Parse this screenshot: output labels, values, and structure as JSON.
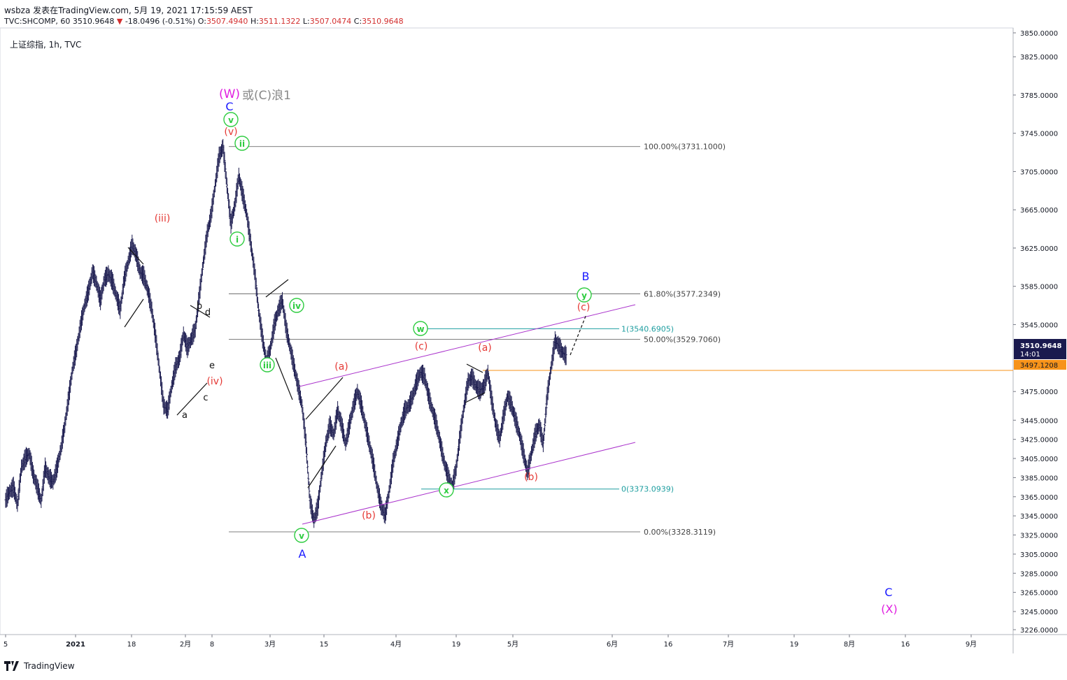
{
  "header": {
    "line1": "wsbza 发表在TradingView.com, 5月 19, 2021 17:15:59 AEST",
    "ticker": "TVC:SHCOMP, 60",
    "last": "3510.9648",
    "change": "-18.0496 (-0.51%)",
    "o_label": "O:",
    "o": "3507.4940",
    "h_label": "H:",
    "h": "3511.1322",
    "l_label": "L:",
    "l": "3507.0474",
    "c_label": "C:",
    "c": "3510.9648"
  },
  "symbol_label": "上证综指, 1h, TVC",
  "footer": {
    "brand": "TradingView"
  },
  "colors": {
    "candle": "#1a1a4e",
    "accent_red": "#e53935",
    "green": "#2ecc40",
    "blue": "#1a1aff",
    "magenta": "#e020e0",
    "channel": "#aa33cc",
    "fib_line": "#555555",
    "teal": "#1e9ea0",
    "orange": "#f7931a",
    "price_tag_bg": "#1a1a4e"
  },
  "chart_data": {
    "type": "line",
    "title": "",
    "ylim": [
      3226,
      3860
    ],
    "y_ticks": [
      "3850.0000",
      "3825.0000",
      "3785.0000",
      "3745.0000",
      "3705.0000",
      "3665.0000",
      "3625.0000",
      "3585.0000",
      "3545.0000",
      "3475.0000",
      "3445.0000",
      "3425.0000",
      "3405.0000",
      "3385.0000",
      "3365.0000",
      "3345.0000",
      "3325.0000",
      "3305.0000",
      "3285.0000",
      "3265.0000",
      "3245.0000",
      "3226.0000"
    ],
    "x_ticks": [
      "5",
      "2021",
      "18",
      "2月",
      "8",
      "3月",
      "15",
      "4月",
      "19",
      "5月",
      "6月",
      "16",
      "7月",
      "19",
      "8月",
      "16",
      "9月"
    ],
    "series": [
      {
        "name": "",
        "points": [
          [
            0,
            3361
          ],
          [
            1,
            3370
          ],
          [
            2,
            3375
          ],
          [
            3,
            3356
          ],
          [
            4,
            3395
          ],
          [
            5,
            3405
          ],
          [
            6,
            3410
          ],
          [
            7,
            3388
          ],
          [
            8,
            3375
          ],
          [
            9,
            3360
          ],
          [
            10,
            3395
          ],
          [
            11,
            3385
          ],
          [
            12,
            3380
          ],
          [
            13,
            3395
          ],
          [
            14,
            3415
          ],
          [
            15,
            3440
          ],
          [
            16,
            3470
          ],
          [
            17,
            3500
          ],
          [
            18,
            3520
          ],
          [
            19,
            3545
          ],
          [
            20,
            3565
          ],
          [
            21,
            3580
          ],
          [
            22,
            3600
          ],
          [
            23,
            3588
          ],
          [
            24,
            3570
          ],
          [
            25,
            3592
          ],
          [
            26,
            3598
          ],
          [
            27,
            3590
          ],
          [
            28,
            3575
          ],
          [
            29,
            3560
          ],
          [
            30,
            3592
          ],
          [
            31,
            3610
          ],
          [
            32,
            3628
          ],
          [
            33,
            3618
          ],
          [
            34,
            3600
          ],
          [
            35,
            3595
          ],
          [
            36,
            3580
          ],
          [
            37,
            3560
          ],
          [
            38,
            3530
          ],
          [
            39,
            3495
          ],
          [
            40,
            3460
          ],
          [
            41,
            3455
          ],
          [
            42,
            3480
          ],
          [
            43,
            3500
          ],
          [
            44,
            3510
          ],
          [
            45,
            3535
          ],
          [
            46,
            3520
          ],
          [
            47,
            3530
          ],
          [
            48,
            3540
          ],
          [
            49,
            3575
          ],
          [
            50,
            3610
          ],
          [
            51,
            3640
          ],
          [
            52,
            3660
          ],
          [
            53,
            3690
          ],
          [
            54,
            3720
          ],
          [
            55,
            3731
          ],
          [
            56,
            3690
          ],
          [
            57,
            3650
          ],
          [
            58,
            3670
          ],
          [
            59,
            3700
          ],
          [
            60,
            3680
          ],
          [
            61,
            3660
          ],
          [
            62,
            3630
          ],
          [
            63,
            3600
          ],
          [
            64,
            3560
          ],
          [
            65,
            3530
          ],
          [
            66,
            3505
          ],
          [
            67,
            3520
          ],
          [
            68,
            3545
          ],
          [
            69,
            3560
          ],
          [
            70,
            3570
          ],
          [
            71,
            3540
          ],
          [
            72,
            3520
          ],
          [
            73,
            3500
          ],
          [
            74,
            3480
          ],
          [
            75,
            3460
          ],
          [
            76,
            3420
          ],
          [
            77,
            3360
          ],
          [
            78,
            3340
          ],
          [
            79,
            3355
          ],
          [
            80,
            3390
          ],
          [
            81,
            3420
          ],
          [
            82,
            3440
          ],
          [
            83,
            3430
          ],
          [
            84,
            3455
          ],
          [
            85,
            3440
          ],
          [
            86,
            3420
          ],
          [
            87,
            3440
          ],
          [
            88,
            3460
          ],
          [
            89,
            3475
          ],
          [
            90,
            3460
          ],
          [
            91,
            3440
          ],
          [
            92,
            3420
          ],
          [
            93,
            3400
          ],
          [
            94,
            3375
          ],
          [
            95,
            3355
          ],
          [
            96,
            3345
          ],
          [
            97,
            3370
          ],
          [
            98,
            3400
          ],
          [
            99,
            3420
          ],
          [
            100,
            3440
          ],
          [
            101,
            3455
          ],
          [
            102,
            3460
          ],
          [
            103,
            3470
          ],
          [
            104,
            3485
          ],
          [
            105,
            3495
          ],
          [
            106,
            3490
          ],
          [
            107,
            3470
          ],
          [
            108,
            3455
          ],
          [
            109,
            3440
          ],
          [
            110,
            3420
          ],
          [
            111,
            3400
          ],
          [
            112,
            3385
          ],
          [
            113,
            3375
          ],
          [
            114,
            3395
          ],
          [
            115,
            3430
          ],
          [
            116,
            3460
          ],
          [
            117,
            3485
          ],
          [
            118,
            3490
          ],
          [
            119,
            3480
          ],
          [
            120,
            3475
          ],
          [
            121,
            3480
          ],
          [
            122,
            3495
          ],
          [
            123,
            3465
          ],
          [
            124,
            3440
          ],
          [
            125,
            3425
          ],
          [
            126,
            3450
          ],
          [
            127,
            3470
          ],
          [
            128,
            3460
          ],
          [
            129,
            3445
          ],
          [
            130,
            3430
          ],
          [
            131,
            3410
          ],
          [
            132,
            3390
          ],
          [
            133,
            3410
          ],
          [
            134,
            3430
          ],
          [
            135,
            3440
          ],
          [
            136,
            3420
          ],
          [
            137,
            3470
          ],
          [
            138,
            3500
          ],
          [
            139,
            3528
          ],
          [
            140,
            3522
          ],
          [
            141,
            3515
          ],
          [
            142,
            3511
          ]
        ]
      }
    ],
    "x_note": "series x is hourly-bar index; 143 bars",
    "price_tags": {
      "last": "3510.9648",
      "countdown": "14:01",
      "ref": "3497.1208"
    },
    "fib_levels": [
      {
        "label": "100.00%(3731.1000)",
        "value": 3731.1
      },
      {
        "label": "61.80%(3577.2349)",
        "value": 3577.2349
      },
      {
        "label": "50.00%(3529.7060)",
        "value": 3529.706
      },
      {
        "label": "0.00%(3328.3119)",
        "value": 3328.3119
      }
    ],
    "teal_levels": [
      {
        "label": "1(3540.6905)",
        "value": 3540.6905
      },
      {
        "label": "0(3373.0939)",
        "value": 3373.0939
      }
    ],
    "orange_level": 3497.1208,
    "wave_labels": {
      "W": "(W)",
      "W_note": "或(C)浪1",
      "C_top": "C",
      "v_top": "v",
      "v_red": "(v)",
      "ii": "ii",
      "iii_red": "(iii)",
      "i": "i",
      "iv": "iv",
      "iii": "iii",
      "v_bottom": "v",
      "A": "A",
      "a": "a",
      "b": "b",
      "c": "c",
      "d": "d",
      "e": "e",
      "iv_red": "(iv)",
      "a1": "(a)",
      "b1": "(b)",
      "c1": "(c)",
      "a2": "(a)",
      "b2": "(b)",
      "c2": "(c)",
      "w": "w",
      "x": "x",
      "y": "y",
      "B": "B",
      "C_bottom": "C",
      "X": "(X)"
    }
  }
}
